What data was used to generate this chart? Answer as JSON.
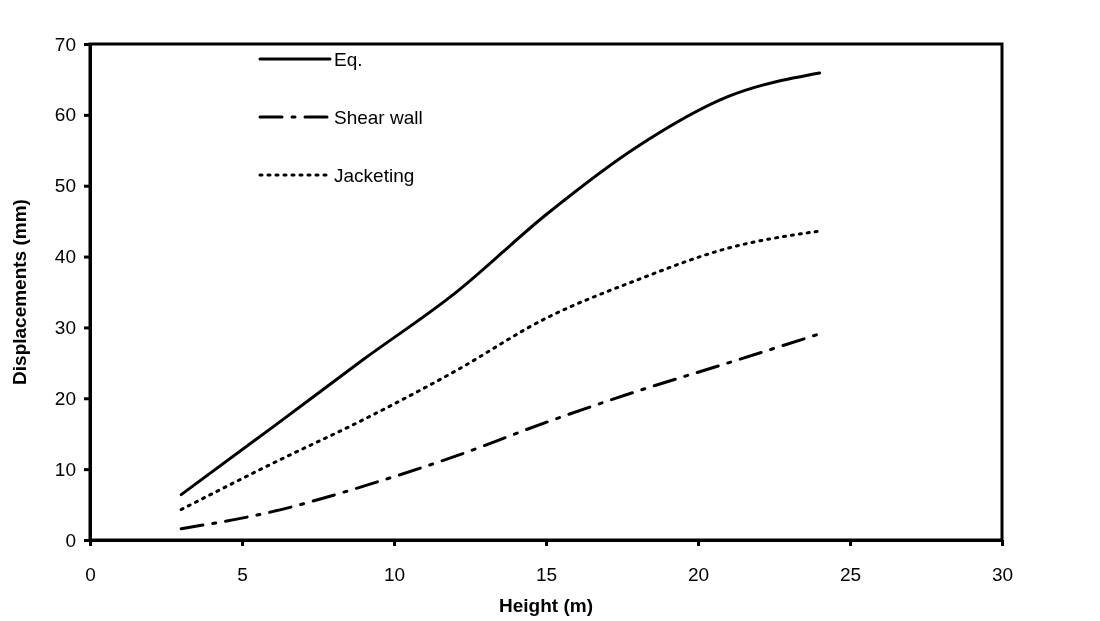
{
  "chart_data": {
    "type": "line",
    "xlabel": "Height (m)",
    "ylabel": "Displacements (mm)",
    "x": [
      3,
      6,
      9,
      12,
      15,
      18,
      21,
      24
    ],
    "xlim": [
      0,
      30
    ],
    "xticks": [
      0,
      5,
      10,
      15,
      20,
      25,
      30
    ],
    "ylim": [
      0,
      70
    ],
    "yticks": [
      0,
      10,
      20,
      30,
      40,
      50,
      60,
      70
    ],
    "grid": false,
    "legend": "top left",
    "marker": "none",
    "series": [
      {
        "name": "Eq.",
        "color": "#000000",
        "line_style": "solid",
        "values": [
          6.4,
          15.9,
          25.5,
          34.8,
          45.9,
          55.5,
          62.6,
          65.9
        ]
      },
      {
        "name": "Shear wall",
        "color": "#000000",
        "line_style": "dashdot",
        "values": [
          1.6,
          4,
          7.6,
          11.8,
          16.6,
          21,
          25,
          29.1
        ]
      },
      {
        "name": "Jacketing",
        "color": "#000000",
        "line_style": "dotted",
        "values": [
          4.3,
          10.8,
          17,
          23.8,
          31.3,
          36.7,
          41.2,
          43.6
        ]
      }
    ]
  }
}
